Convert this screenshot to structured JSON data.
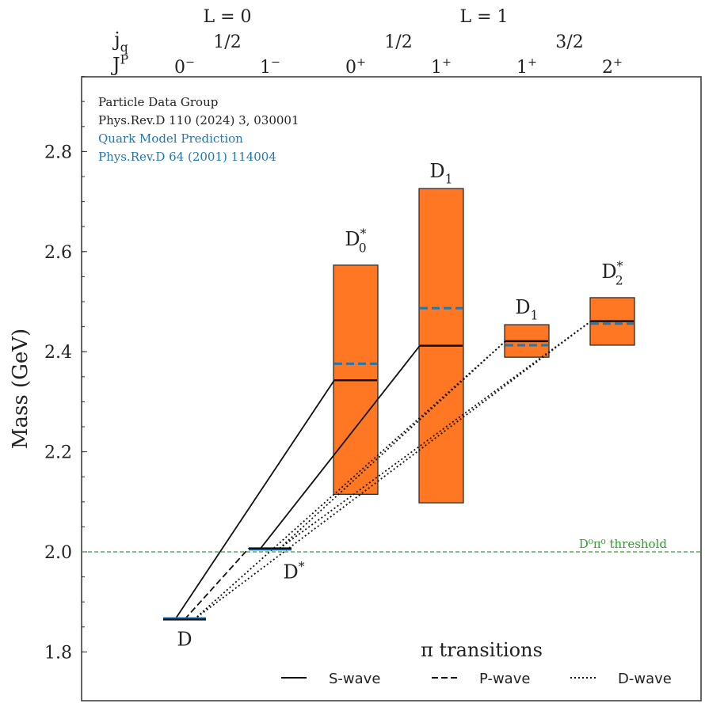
{
  "chart_data": {
    "type": "level-diagram",
    "ylabel": "Mass (GeV)",
    "ylim": [
      1.76,
      2.97
    ],
    "yticks": [
      1.8,
      2.0,
      2.2,
      2.4,
      2.6,
      2.8
    ],
    "top_header": {
      "L_labels": [
        {
          "text": "L = 0",
          "col": 0.5
        },
        {
          "text": "L = 1",
          "col": 3.5
        }
      ],
      "jq_label": "j",
      "jq_sub": "q",
      "jq_values": [
        {
          "text": "1/2",
          "col": 0.5
        },
        {
          "text": "1/2",
          "col": 2.5
        },
        {
          "text": "3/2",
          "col": 4.5
        }
      ],
      "JP_label": "J",
      "JP_sup": "P",
      "JP_values": [
        {
          "base": "0",
          "sup": "−"
        },
        {
          "base": "1",
          "sup": "−"
        },
        {
          "base": "0",
          "sup": "+"
        },
        {
          "base": "1",
          "sup": "+"
        },
        {
          "base": "1",
          "sup": "+"
        },
        {
          "base": "2",
          "sup": "+"
        }
      ]
    },
    "annotation": {
      "lines": [
        "Particle Data Group",
        "Phys.Rev.D 110 (2024) 3, 030001"
      ],
      "model_lines": [
        "Quark Model Prediction",
        "Phys.Rev.D 64 (2001) 114004"
      ]
    },
    "states": [
      {
        "name": "D",
        "sub": "",
        "sup": "",
        "col": 0,
        "mass": 1.865,
        "low": null,
        "high": null,
        "pred": 1.867,
        "label_pos": "below"
      },
      {
        "name": "D",
        "sub": "",
        "sup": "*",
        "col": 1,
        "mass": 2.007,
        "low": null,
        "high": null,
        "pred": 2.005,
        "label_pos": "below"
      },
      {
        "name": "D",
        "sub": "0",
        "sup": "*",
        "col": 2,
        "mass": 2.343,
        "low": 2.115,
        "high": 2.573,
        "pred": 2.376,
        "label_pos": "above"
      },
      {
        "name": "D",
        "sub": "1",
        "sup": "",
        "col": 3,
        "mass": 2.412,
        "low": 2.098,
        "high": 2.726,
        "pred": 2.487,
        "label_pos": "above"
      },
      {
        "name": "D",
        "sub": "1",
        "sup": "",
        "col": 4,
        "mass": 2.421,
        "low": 2.389,
        "high": 2.454,
        "pred": 2.413,
        "label_pos": "above"
      },
      {
        "name": "D",
        "sub": "2",
        "sup": "*",
        "col": 5,
        "mass": 2.461,
        "low": 2.413,
        "high": 2.508,
        "pred": 2.456,
        "label_pos": "above"
      }
    ],
    "transitions": [
      {
        "from": 0,
        "to": 2,
        "wave": "S"
      },
      {
        "from": 1,
        "to": 3,
        "wave": "S"
      },
      {
        "from": 0,
        "to": 1,
        "wave": "P"
      },
      {
        "from": 0,
        "to": 4,
        "wave": "D"
      },
      {
        "from": 0,
        "to": 5,
        "wave": "D"
      },
      {
        "from": 1,
        "to": 4,
        "wave": "D"
      },
      {
        "from": 1,
        "to": 5,
        "wave": "D"
      }
    ],
    "threshold": {
      "mass": 2.0,
      "label": "D⁰π⁰ threshold"
    },
    "legend": {
      "title": "π transitions",
      "entries": [
        "S-wave",
        "P-wave",
        "D-wave"
      ],
      "placement": "bottom-right"
    },
    "colors": {
      "band": "#ff7722",
      "pred": "#1f77b4",
      "threshold": "#2ca02c",
      "text": "#222222"
    }
  }
}
